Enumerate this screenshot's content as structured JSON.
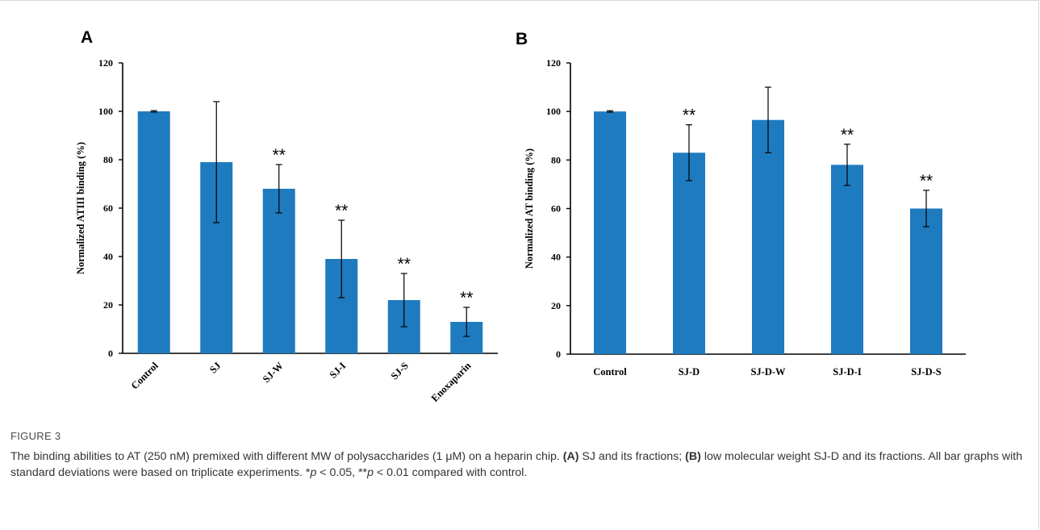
{
  "chart_data": [
    {
      "type": "bar",
      "panel_label": "A",
      "categories": [
        "Control",
        "SJ",
        "SJ-W",
        "SJ-I",
        "SJ-S",
        "Enoxaparin"
      ],
      "values": [
        100,
        79,
        68,
        39,
        22,
        13
      ],
      "errors": [
        0.3,
        25,
        10,
        16,
        11,
        6
      ],
      "significance": [
        "",
        "",
        "**",
        "**",
        "**",
        "**"
      ],
      "ylabel": "Normalized ATIII binding (%)",
      "ylim": [
        0,
        120
      ],
      "yticks": [
        0,
        20,
        40,
        60,
        80,
        100,
        120
      ],
      "xlabel_rotation": "rotated",
      "bar_color": "#1f7bbf",
      "grid": false
    },
    {
      "type": "bar",
      "panel_label": "B",
      "categories": [
        "Control",
        "SJ-D",
        "SJ-D-W",
        "SJ-D-I",
        "SJ-D-S"
      ],
      "values": [
        100,
        83,
        96.5,
        78,
        60
      ],
      "errors": [
        0.3,
        11.5,
        13.5,
        8.5,
        7.5
      ],
      "significance": [
        "",
        "**",
        "",
        "**",
        "**"
      ],
      "ylabel": "Normalized AT binding (%)",
      "ylim": [
        0,
        120
      ],
      "yticks": [
        0,
        20,
        40,
        60,
        80,
        100,
        120
      ],
      "xlabel_rotation": "horizontal",
      "bar_color": "#1f7bbf",
      "grid": false
    }
  ],
  "caption": {
    "figure_label": "FIGURE 3",
    "text_1": "The binding abilities to AT (250 nM) premixed with different MW of polysaccharides (1 μM) on a heparin chip. ",
    "panel_a_ref": "(A)",
    "text_2": " SJ and its fractions; ",
    "panel_b_ref": "(B)",
    "text_3": " low molecular weight SJ-D and its fractions. All bar graphs with standard deviations were based on triplicate experiments. *",
    "p_symbol_1": "p",
    "text_4": " < 0.05, **",
    "p_symbol_2": "p",
    "text_5": " < 0.01 compared with control."
  }
}
